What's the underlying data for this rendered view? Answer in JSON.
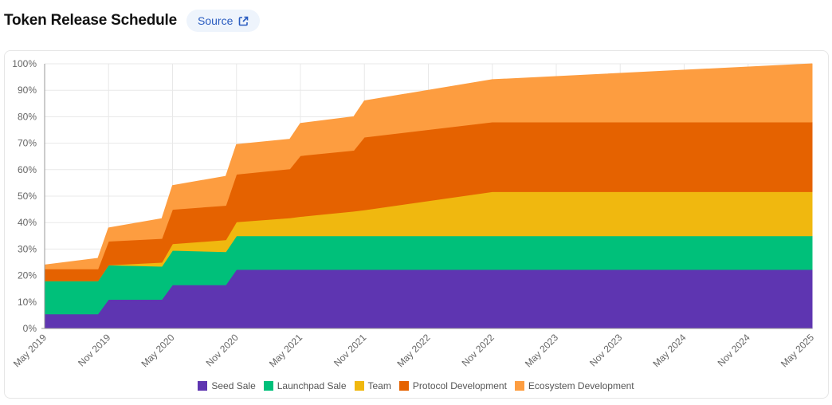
{
  "header": {
    "title": "Token Release Schedule",
    "source_label": "Source"
  },
  "chart_data": {
    "type": "area",
    "stacked": true,
    "title": "Token Release Schedule",
    "xlabel": "",
    "ylabel": "",
    "x_unit": "months since May 2019",
    "x": [
      0,
      5,
      6,
      11,
      12,
      17,
      18,
      23,
      24,
      29,
      30,
      42,
      72
    ],
    "x_ticks": [
      "May 2019",
      "Nov 2019",
      "May 2020",
      "Nov 2020",
      "May 2021",
      "Nov 2021",
      "May 2022",
      "Nov 2022",
      "May 2023",
      "Nov 2023",
      "May 2024",
      "Nov 2024",
      "May 2025"
    ],
    "y_ticks": [
      "0%",
      "10%",
      "20%",
      "30%",
      "40%",
      "50%",
      "60%",
      "70%",
      "80%",
      "90%",
      "100%"
    ],
    "ylim": [
      0,
      100
    ],
    "grid": true,
    "legend_position": "bottom",
    "series": [
      {
        "name": "Seed Sale",
        "color": "#5e35b1",
        "values": [
          5.5,
          5.5,
          11,
          11,
          16.5,
          16.5,
          22.3,
          22.3,
          22.3,
          22.3,
          22.3,
          22.3,
          22.3
        ]
      },
      {
        "name": "Launchpad Sale",
        "color": "#00c07a",
        "values": [
          12.5,
          12.5,
          13,
          12.5,
          13,
          12.5,
          12.7,
          12.7,
          12.7,
          12.7,
          12.7,
          12.7,
          12.7
        ]
      },
      {
        "name": "Team",
        "color": "#f0b80f",
        "values": [
          0,
          0,
          0,
          1.5,
          2.5,
          4.5,
          5.3,
          6.8,
          7.3,
          9.3,
          9.8,
          16.7,
          16.7
        ]
      },
      {
        "name": "Protocol Development",
        "color": "#e56200",
        "values": [
          4.5,
          4.5,
          9,
          9,
          13,
          13,
          18,
          18.5,
          23,
          23,
          27.5,
          26.3,
          26.3
        ]
      },
      {
        "name": "Ecosystem Development",
        "color": "#fd9d40",
        "values": [
          1.5,
          4,
          5,
          7.5,
          9,
          11,
          11.2,
          11.2,
          12.2,
          12.7,
          13.7,
          16,
          22
        ]
      }
    ]
  }
}
